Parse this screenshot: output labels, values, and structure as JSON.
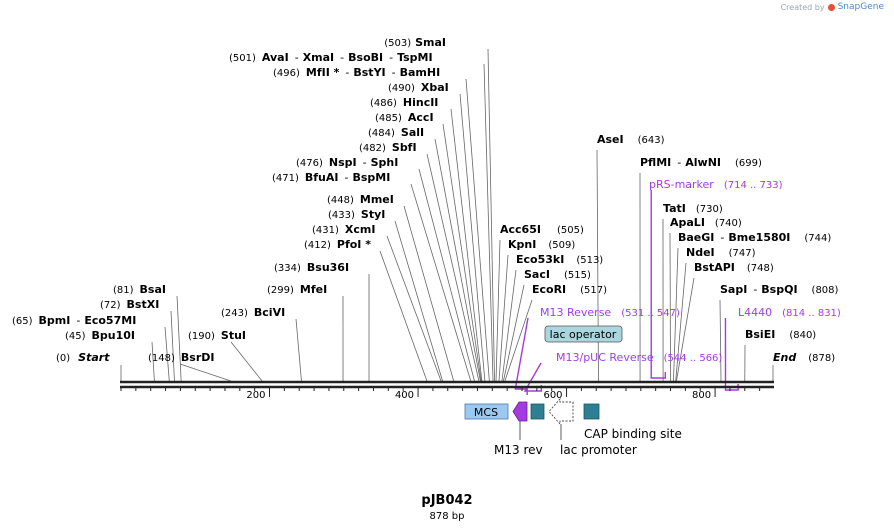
{
  "brand": {
    "prefix": "Created by",
    "name": "SnapGene"
  },
  "plasmid": {
    "name": "pJB042",
    "length_label": "878 bp",
    "length": 878
  },
  "scale": {
    "ticks": [
      {
        "pos": 200,
        "label": "200"
      },
      {
        "pos": 400,
        "label": "400"
      },
      {
        "pos": 600,
        "label": "600"
      },
      {
        "pos": 800,
        "label": "800"
      }
    ]
  },
  "ends": [
    {
      "pos": 0,
      "pos_label": "(0)",
      "label": "Start",
      "side": "left"
    },
    {
      "pos": 878,
      "pos_label": "(878)",
      "label": "End",
      "side": "right"
    }
  ],
  "left_sites": [
    {
      "pos_label": "(503)",
      "names": [
        "SmaI"
      ],
      "pos": 503
    },
    {
      "pos_label": "(501)",
      "names": [
        "AvaI",
        "XmaI",
        "BsoBI",
        "TspMI"
      ],
      "pos": 501
    },
    {
      "pos_label": "(496)",
      "names": [
        "MfII *",
        "BstYI",
        "BamHI"
      ],
      "pos": 496
    },
    {
      "pos_label": "(490)",
      "names": [
        "XbaI"
      ],
      "pos": 490
    },
    {
      "pos_label": "(486)",
      "names": [
        "HincII"
      ],
      "pos": 486
    },
    {
      "pos_label": "(485)",
      "names": [
        "AccI"
      ],
      "pos": 485
    },
    {
      "pos_label": "(484)",
      "names": [
        "SalI"
      ],
      "pos": 484
    },
    {
      "pos_label": "(482)",
      "names": [
        "SbfI"
      ],
      "pos": 482
    },
    {
      "pos_label": "(476)",
      "names": [
        "NspI",
        "SphI"
      ],
      "pos": 476
    },
    {
      "pos_label": "(471)",
      "names": [
        "BfuAI",
        "BspMI"
      ],
      "pos": 471
    },
    {
      "pos_label": "(448)",
      "names": [
        "MmeI"
      ],
      "pos": 448
    },
    {
      "pos_label": "(433)",
      "names": [
        "StyI"
      ],
      "pos": 433
    },
    {
      "pos_label": "(431)",
      "names": [
        "XcmI"
      ],
      "pos": 431
    },
    {
      "pos_label": "(412)",
      "names": [
        "PfoI *"
      ],
      "pos": 412
    },
    {
      "pos_label": "(334)",
      "names": [
        "Bsu36I"
      ],
      "pos": 334
    },
    {
      "pos_label": "(299)",
      "names": [
        "MfeI"
      ],
      "pos": 299
    },
    {
      "pos_label": "(243)",
      "names": [
        "BciVI"
      ],
      "pos": 243
    },
    {
      "pos_label": "(81)",
      "names": [
        "BsaI"
      ],
      "pos": 81
    },
    {
      "pos_label": "(72)",
      "names": [
        "BstXI"
      ],
      "pos": 72
    },
    {
      "pos_label": "(65)",
      "names": [
        "BpmI",
        "Eco57MI"
      ],
      "pos": 65
    },
    {
      "pos_label": "(45)",
      "names": [
        "Bpu10I"
      ],
      "pos": 45
    },
    {
      "pos_label": "(190)",
      "names": [
        "StuI"
      ],
      "pos": 190
    },
    {
      "pos_label": "(148)",
      "names": [
        "BsrDI"
      ],
      "pos": 148
    }
  ],
  "right_sites": [
    {
      "pos_label": "(643)",
      "names": [
        "AseI"
      ],
      "pos": 643
    },
    {
      "pos_label": "(699)",
      "names": [
        "PflMI",
        "AlwNI"
      ],
      "pos": 699
    },
    {
      "pos_label": "(730)",
      "names": [
        "TatI"
      ],
      "pos": 730
    },
    {
      "pos_label": "(740)",
      "names": [
        "ApaLI"
      ],
      "pos": 740
    },
    {
      "pos_label": "(744)",
      "names": [
        "BaeGI",
        "Bme1580I"
      ],
      "pos": 744
    },
    {
      "pos_label": "(747)",
      "names": [
        "NdeI"
      ],
      "pos": 747
    },
    {
      "pos_label": "(748)",
      "names": [
        "BstAPI"
      ],
      "pos": 748
    },
    {
      "pos_label": "(808)",
      "names": [
        "SapI",
        "BspQI"
      ],
      "pos": 808
    },
    {
      "pos_label": "(840)",
      "names": [
        "BsiEI"
      ],
      "pos": 840
    },
    {
      "pos_label": "(505)",
      "names": [
        "Acc65I"
      ],
      "pos": 505
    },
    {
      "pos_label": "(509)",
      "names": [
        "KpnI"
      ],
      "pos": 509
    },
    {
      "pos_label": "(513)",
      "names": [
        "Eco53kI"
      ],
      "pos": 513
    },
    {
      "pos_label": "(515)",
      "names": [
        "SacI"
      ],
      "pos": 515
    },
    {
      "pos_label": "(517)",
      "names": [
        "EcoRI"
      ],
      "pos": 517
    }
  ],
  "primers": [
    {
      "name": "pRS-marker",
      "range": "(714 .. 733)",
      "start": 714,
      "end": 733
    },
    {
      "name": "M13 Reverse",
      "range": "(531 .. 547)",
      "start": 531,
      "end": 547
    },
    {
      "name": "M13/pUC Reverse",
      "range": "(544 .. 566)",
      "start": 544,
      "end": 566
    },
    {
      "name": "L4440",
      "range": "(814 .. 831)",
      "start": 814,
      "end": 831
    }
  ],
  "features": [
    {
      "label": "lac operator",
      "kind": "boxed-label"
    },
    {
      "label": "MCS",
      "kind": "box"
    },
    {
      "label": "M13 rev",
      "kind": "arrow"
    },
    {
      "label": "lac promoter",
      "kind": "arrow"
    },
    {
      "label": "CAP binding site",
      "kind": "box"
    }
  ],
  "colors": {
    "primer": "#a43be0",
    "feature_teal": "#2e7f91",
    "mcs_fill": "#9cc9f2",
    "operator_fill": "#a9d6df"
  }
}
